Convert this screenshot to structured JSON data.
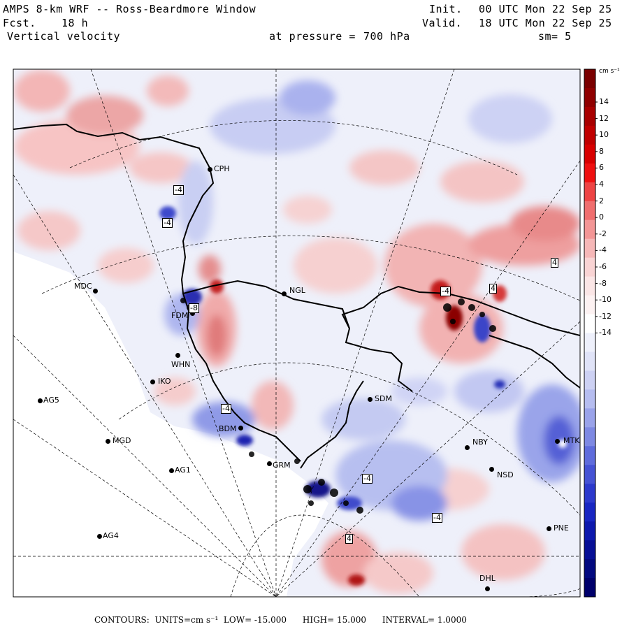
{
  "header": {
    "title": "AMPS 8-km WRF -- Ross-Beardmore Window",
    "fcst_label": "Fcst.",
    "fcst_value": "18 h",
    "field": "Vertical velocity",
    "init_label": "Init.",
    "init_value": "00 UTC Mon 22 Sep 25",
    "valid_label": "Valid.",
    "valid_value": "18 UTC Mon 22 Sep 25",
    "pressure_label": "at pressure =",
    "pressure_value": "700 hPa",
    "smoothing": "sm= 5"
  },
  "colorbar": {
    "units": "cm s⁻¹",
    "ticks": [
      "14",
      "12",
      "10",
      "8",
      "6",
      "4",
      "2",
      "0",
      "-2",
      "-4",
      "-6",
      "-8",
      "-10",
      "-12",
      "-14"
    ],
    "positive_color": "#8b0000",
    "negative_color": "#00007a"
  },
  "stations": [
    {
      "code": "CPH"
    },
    {
      "code": "MDC"
    },
    {
      "code": "NGL"
    },
    {
      "code": "FDM"
    },
    {
      "code": "WHN"
    },
    {
      "code": "IKO"
    },
    {
      "code": "AG5"
    },
    {
      "code": "MGD"
    },
    {
      "code": "BDM"
    },
    {
      "code": "GRM"
    },
    {
      "code": "AG1"
    },
    {
      "code": "AG4"
    },
    {
      "code": "SDM"
    },
    {
      "code": "NBY"
    },
    {
      "code": "NSD"
    },
    {
      "code": "MTK"
    },
    {
      "code": "PNE"
    },
    {
      "code": "DHL"
    }
  ],
  "contour_labels": [
    "-4",
    "-4",
    "-8",
    "4",
    "4",
    "-4",
    "-4",
    "-4",
    "4",
    "-4"
  ],
  "footer": {
    "contours_label": "CONTOURS:",
    "units_label": "UNITS=cm s⁻¹",
    "low": "LOW= -15.000",
    "high": "HIGH= 15.000",
    "interval": "INTERVAL= 1.0000"
  }
}
